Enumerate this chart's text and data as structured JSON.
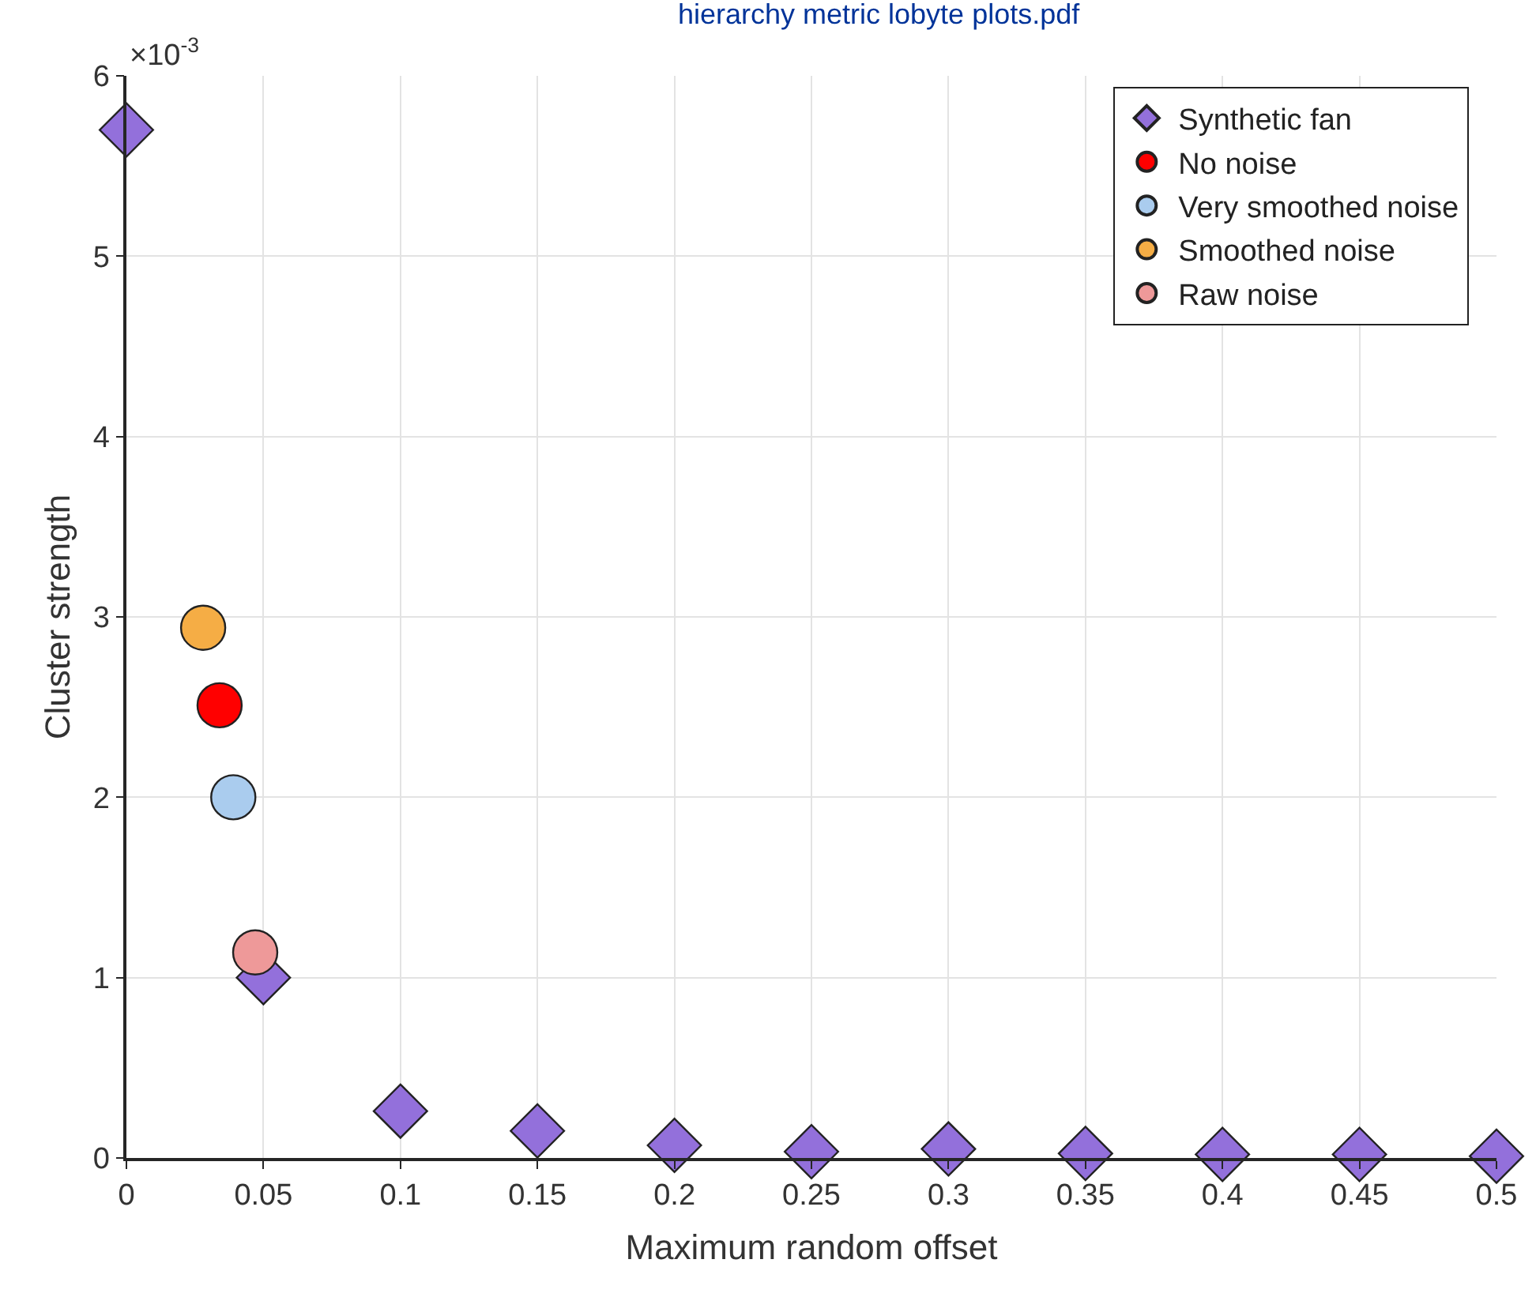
{
  "chart_data": {
    "type": "scatter",
    "xlabel": "Maximum random offset",
    "ylabel": "Cluster strength",
    "annotations": [
      "×10$^{-3}$",
      "hierarchy metric lobyte plots.pdf"
    ],
    "xlim": [
      0,
      0.5
    ],
    "xticks": [
      0,
      0.05,
      0.1,
      0.15,
      0.2,
      0.25,
      0.3,
      0.35,
      0.4,
      0.45,
      0.5
    ],
    "ylim": [
      0,
      6
    ],
    "yticks": [
      0,
      1,
      2,
      3,
      4,
      5,
      6
    ],
    "grid": true,
    "legend": "top right",
    "series": [
      {
        "name": "Synthetic fan",
        "color": "#9370db",
        "marker": "diamond",
        "x": [
          0,
          0.05,
          0.1,
          0.15,
          0.2,
          0.25,
          0.3,
          0.35,
          0.4,
          0.45,
          0.5
        ],
        "values": [
          5.7,
          1.0,
          0.26,
          0.15,
          0.07,
          0.035,
          0.05,
          0.025,
          0.02,
          0.02,
          0.01
        ]
      },
      {
        "name": "No noise",
        "color": "#ff0000",
        "marker": "circle",
        "x": [
          0.034
        ],
        "values": [
          2.51
        ]
      },
      {
        "name": "Very smoothed noise",
        "color": "#aaccee",
        "marker": "circle",
        "x": [
          0.039
        ],
        "values": [
          2.0
        ]
      },
      {
        "name": "Smoothed noise",
        "color": "#f5ad45",
        "marker": "circle",
        "x": [
          0.028
        ],
        "values": [
          2.94
        ]
      },
      {
        "name": "Raw noise",
        "color": "#ee9999",
        "marker": "circle",
        "x": [
          0.047
        ],
        "values": [
          1.14
        ]
      }
    ]
  }
}
